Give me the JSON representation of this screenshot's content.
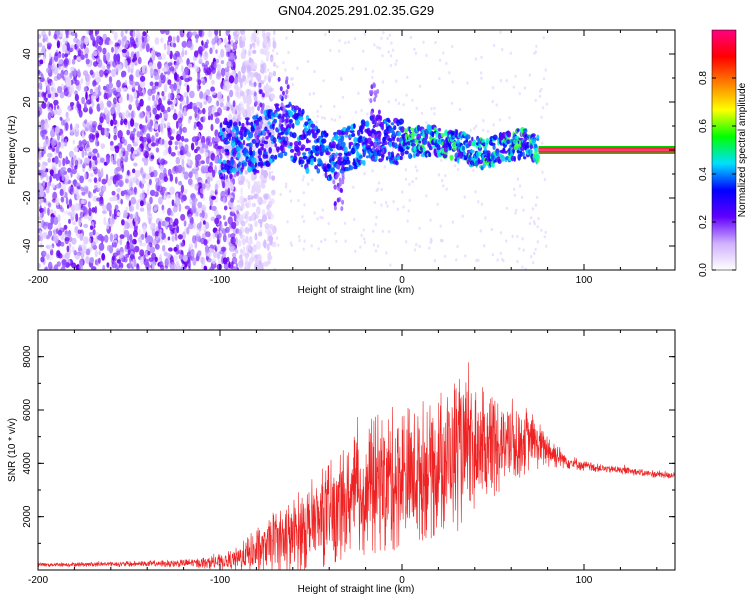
{
  "chart_data": [
    {
      "type": "heatmap",
      "title": "GN04.2025.291.02.35.G29",
      "xlabel": "Height of straight line (km)",
      "ylabel": "Frequency (Hz)",
      "xlim": [
        -200,
        150
      ],
      "ylim": [
        -50,
        50
      ],
      "x_ticks": [
        -200,
        -100,
        0,
        100
      ],
      "y_ticks": [
        -40,
        -20,
        0,
        20,
        40
      ],
      "colorbar": {
        "label": "Normalized spectral amplitude",
        "range": [
          0,
          1
        ],
        "ticks": [
          0.0,
          0.2,
          0.4,
          0.6,
          0.8
        ],
        "colormap": [
          "#ffffff",
          "#d0b0ff",
          "#6000ff",
          "#0000ff",
          "#00e0ff",
          "#00ff00",
          "#ffff00",
          "#ff8000",
          "#ff0000",
          "#ff0080"
        ]
      },
      "features": {
        "noise_region_x": [
          -200,
          -90
        ],
        "signal_track": [
          {
            "x": -100,
            "f": 0
          },
          {
            "x": -80,
            "f": 2
          },
          {
            "x": -65,
            "f": 10
          },
          {
            "x": -40,
            "f": -3
          },
          {
            "x": -15,
            "f": 5
          },
          {
            "x": 0,
            "f": 3
          },
          {
            "x": 20,
            "f": 4
          },
          {
            "x": 45,
            "f": -2
          },
          {
            "x": 65,
            "f": 3
          },
          {
            "x": 75,
            "f": 0
          },
          {
            "x": 150,
            "f": 0
          }
        ],
        "peak_band_x": [
          75,
          150
        ]
      }
    },
    {
      "type": "line",
      "xlabel": "Height of straight line (km)",
      "ylabel": "SNR (10 * v/v)",
      "xlim": [
        -200,
        150
      ],
      "ylim": [
        0,
        9000
      ],
      "x_ticks": [
        -200,
        -100,
        0,
        100
      ],
      "y_ticks": [
        2000,
        4000,
        6000,
        8000
      ],
      "color": "#ee2222",
      "envelope": {
        "x": [
          -200,
          -160,
          -120,
          -100,
          -90,
          -80,
          -70,
          -60,
          -50,
          -40,
          -30,
          -20,
          -10,
          0,
          10,
          20,
          30,
          40,
          50,
          60,
          70,
          80,
          90,
          100,
          110,
          120,
          130,
          140,
          150
        ],
        "mean": [
          200,
          220,
          250,
          300,
          400,
          700,
          1000,
          1300,
          1700,
          2100,
          2500,
          3000,
          3300,
          3500,
          3700,
          4000,
          4400,
          4500,
          4700,
          4800,
          4900,
          4500,
          4100,
          3900,
          3800,
          3750,
          3650,
          3600,
          3550
        ],
        "amp": [
          80,
          100,
          150,
          300,
          500,
          900,
          1300,
          1500,
          1700,
          2000,
          2200,
          2600,
          2700,
          2800,
          2700,
          2800,
          3000,
          2400,
          2100,
          1700,
          1200,
          700,
          300,
          200,
          150,
          150,
          150,
          150,
          150
        ]
      }
    }
  ]
}
